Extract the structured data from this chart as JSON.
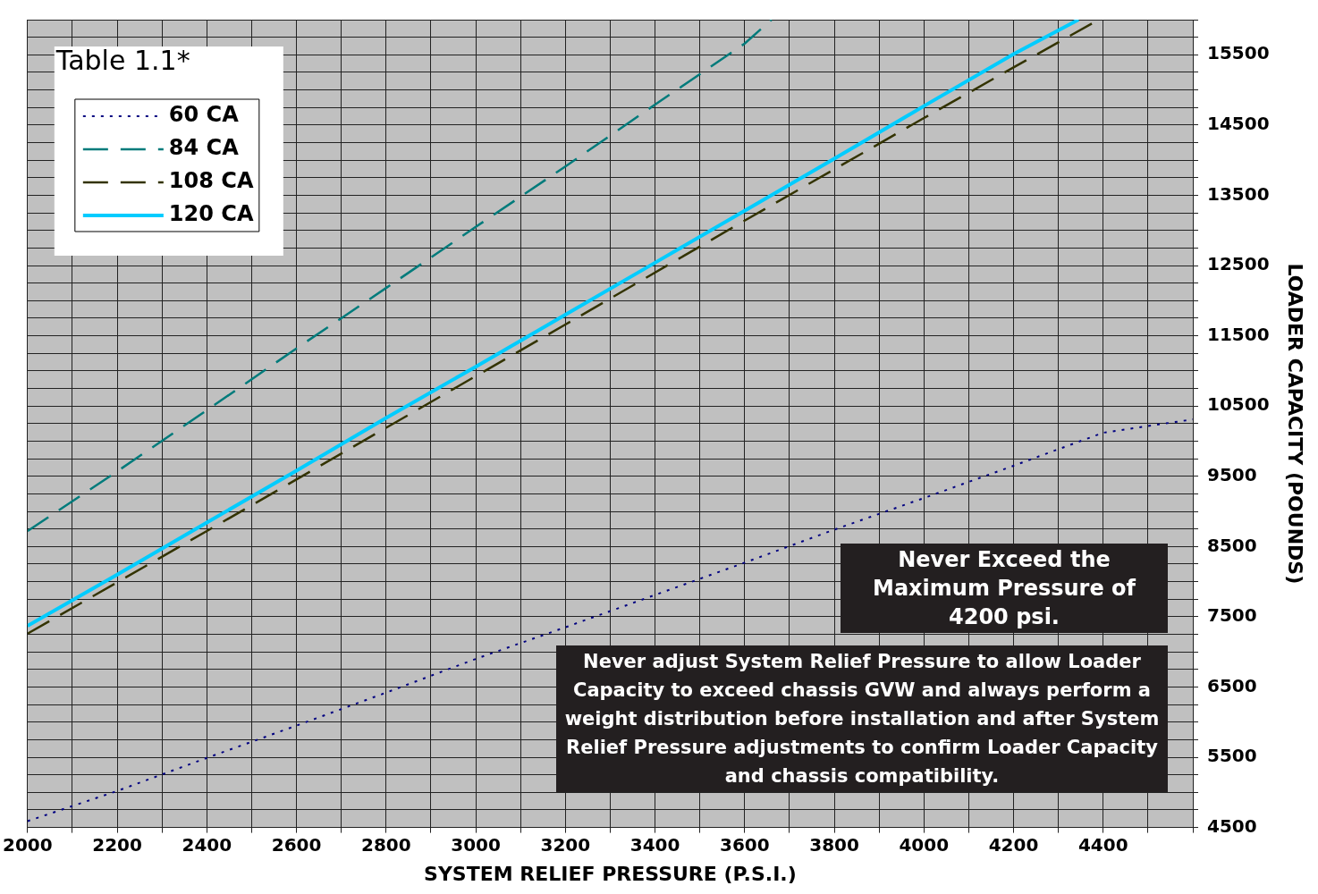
{
  "chart_data": {
    "type": "line",
    "xlabel": "SYSTEM RELIEF PRESSURE (P.S.I.)",
    "ylabel": "LOADER CAPACITY (POUNDS)",
    "legend_title": "Table 1.1*",
    "xlim": [
      2000,
      4600
    ],
    "ylim": [
      4500,
      16000
    ],
    "xticks": [
      2000,
      {
        "value": 2100,
        "label": null
      },
      2200,
      {
        "value": 2300,
        "label": null
      },
      2400,
      {
        "value": 2500,
        "label": null
      },
      2600,
      {
        "value": 2700,
        "label": null
      },
      2800,
      {
        "value": 2900,
        "label": null
      },
      3000,
      {
        "value": 3100,
        "label": null
      },
      3200,
      {
        "value": 3300,
        "label": null
      },
      3400,
      {
        "value": 3500,
        "label": null
      },
      3600,
      {
        "value": 3700,
        "label": null
      },
      3800,
      {
        "value": 3900,
        "label": null
      },
      4000,
      {
        "value": 4100,
        "label": null
      },
      4200,
      {
        "value": 4300,
        "label": null
      },
      4400,
      {
        "value": 4500,
        "label": null
      },
      {
        "value": 4600,
        "label": null
      }
    ],
    "yticks": [
      4500,
      {
        "value": 4750,
        "label": null
      },
      {
        "value": 5000,
        "label": null
      },
      {
        "value": 5250,
        "label": null
      },
      5500,
      {
        "value": 5750,
        "label": null
      },
      {
        "value": 6000,
        "label": null
      },
      {
        "value": 6250,
        "label": null
      },
      6500,
      {
        "value": 6750,
        "label": null
      },
      {
        "value": 7000,
        "label": null
      },
      {
        "value": 7250,
        "label": null
      },
      7500,
      {
        "value": 7750,
        "label": null
      },
      {
        "value": 8000,
        "label": null
      },
      {
        "value": 8250,
        "label": null
      },
      8500,
      {
        "value": 8750,
        "label": null
      },
      {
        "value": 9000,
        "label": null
      },
      {
        "value": 9250,
        "label": null
      },
      9500,
      {
        "value": 9750,
        "label": null
      },
      {
        "value": 10000,
        "label": null
      },
      {
        "value": 10250,
        "label": null
      },
      10500,
      {
        "value": 10750,
        "label": null
      },
      {
        "value": 11000,
        "label": null
      },
      {
        "value": 11250,
        "label": null
      },
      11500,
      {
        "value": 11750,
        "label": null
      },
      {
        "value": 12000,
        "label": null
      },
      {
        "value": 12250,
        "label": null
      },
      12500,
      {
        "value": 12750,
        "label": null
      },
      {
        "value": 13000,
        "label": null
      },
      {
        "value": 13250,
        "label": null
      },
      13500,
      {
        "value": 13750,
        "label": null
      },
      {
        "value": 14000,
        "label": null
      },
      {
        "value": 14250,
        "label": null
      },
      14500,
      {
        "value": 14750,
        "label": null
      },
      {
        "value": 15000,
        "label": null
      },
      {
        "value": 15250,
        "label": null
      },
      15500,
      {
        "value": 15750,
        "label": null
      },
      {
        "value": 16000,
        "label": null
      }
    ],
    "grid": true,
    "legend": "top left",
    "marker": "none",
    "series": [
      {
        "name": "60 CA",
        "color": "#000080",
        "line_style": "dotted",
        "x": [
          2000,
          2200,
          2400,
          2600,
          2800,
          3000,
          3200,
          3400,
          3600,
          3800,
          4000,
          4200,
          4400,
          4600
        ],
        "values": [
          4590,
          5020,
          5490,
          5950,
          6420,
          6900,
          7350,
          7810,
          8270,
          8740,
          9190,
          9650,
          10120,
          10310
        ]
      },
      {
        "name": "84 CA",
        "color": "#007b7b",
        "line_style": "dashed",
        "x": [
          2000,
          2200,
          2400,
          2600,
          2800,
          3000,
          3200,
          3400,
          3600,
          3660
        ],
        "values": [
          8720,
          9570,
          10440,
          11320,
          12180,
          13050,
          13910,
          14790,
          15660,
          16000
        ]
      },
      {
        "name": "108 CA",
        "color": "#333300",
        "line_style": "dashed",
        "x": [
          2000,
          2400,
          2800,
          3200,
          3600,
          4000,
          4200,
          4390
        ],
        "values": [
          7260,
          8720,
          10190,
          11660,
          13140,
          14600,
          15320,
          16000
        ]
      },
      {
        "name": "120 CA",
        "color": "#00ccff",
        "line_style": "solid",
        "x": [
          2000,
          2200,
          2400,
          2600,
          2800,
          3000,
          3200,
          3400,
          3600,
          3800,
          4000,
          4200,
          4345
        ],
        "values": [
          7370,
          8100,
          8840,
          9580,
          10330,
          11060,
          11800,
          12540,
          13280,
          14020,
          14770,
          15510,
          16000
        ]
      }
    ],
    "annotations": [
      "Never Exceed the Maximum Pressure of 4200 psi.",
      "Never adjust System Relief Pressure to allow Loader Capacity to exceed chassis GVW and always perform a weight distribution before installation and after System Relief Pressure adjustments to confirm Loader Capacity and chassis compatibility."
    ]
  }
}
